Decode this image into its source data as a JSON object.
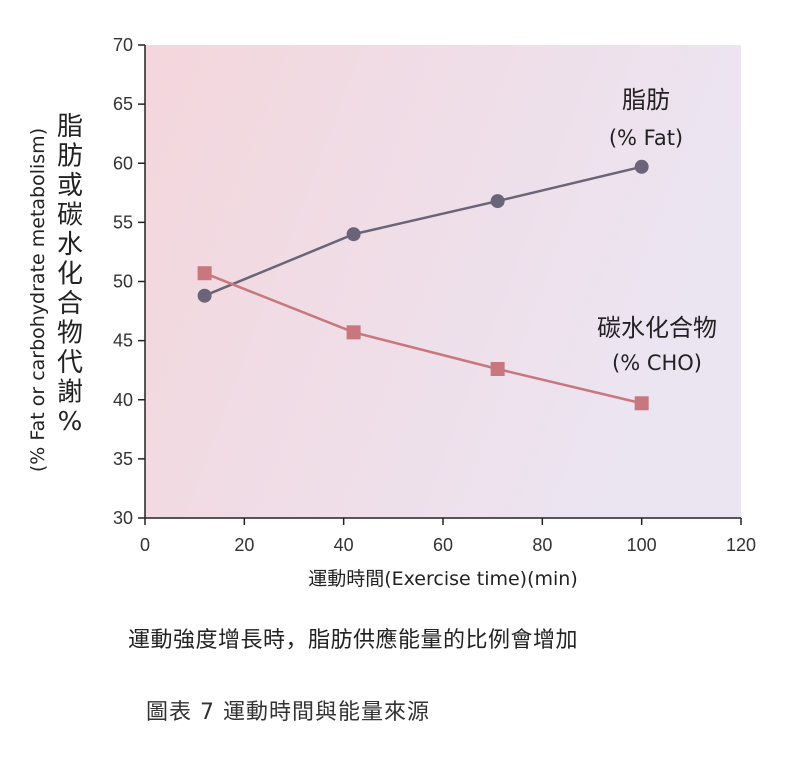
{
  "chart_data": {
    "type": "line",
    "x": [
      12,
      42,
      71,
      100
    ],
    "xlim": [
      0,
      120
    ],
    "ylim": [
      30,
      70
    ],
    "xticks": [
      "0",
      "20",
      "40",
      "60",
      "80",
      "100",
      "120"
    ],
    "yticks": [
      "30",
      "35",
      "40",
      "45",
      "50",
      "55",
      "60",
      "65",
      "70"
    ],
    "xlabel": "運動時間(Exercise time)(min)",
    "ylabel_en": "(% Fat or carbohydrate metabolism)",
    "ylabel_zh": "脂肪或碳水化合物代謝%",
    "series": [
      {
        "name_zh": "脂肪",
        "name_en": "(% Fat)",
        "values": [
          48.8,
          54.0,
          56.8,
          59.7
        ],
        "color": "#6b6478",
        "marker": "circle"
      },
      {
        "name_zh": "碳水化合物",
        "name_en": "(% CHO)",
        "values": [
          50.7,
          45.7,
          42.6,
          39.7
        ],
        "color": "#c9767e",
        "marker": "square"
      }
    ],
    "background_gradient": [
      "#f4d7dd",
      "#ece4f1"
    ],
    "grid": false
  },
  "subtitle": "運動強度增長時，脂肪供應能量的比例會增加",
  "caption": "圖表 7  運動時間與能量來源"
}
